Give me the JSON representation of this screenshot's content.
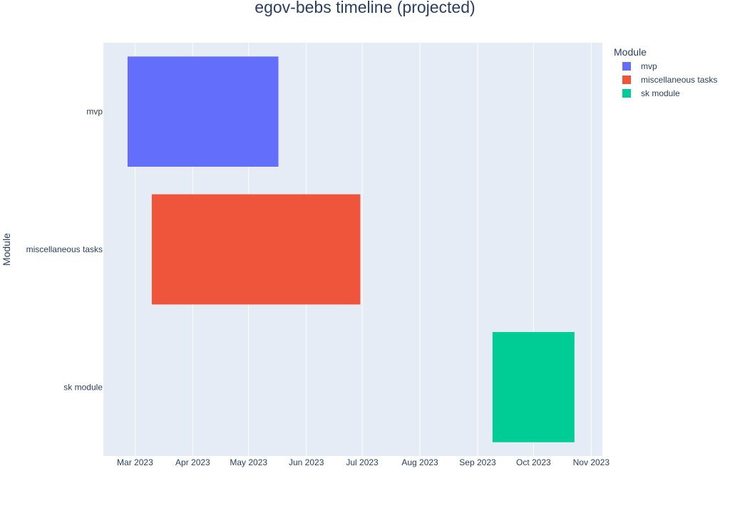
{
  "chart_data": {
    "type": "timeline",
    "title": "egov-bebs timeline (projected)",
    "xlabel": "",
    "ylabel": "Module",
    "x_ticks": [
      "2023-03-01",
      "2023-04-01",
      "2023-05-01",
      "2023-06-01",
      "2023-07-01",
      "2023-08-01",
      "2023-09-01",
      "2023-10-01",
      "2023-11-01"
    ],
    "x_tick_labels": [
      "Mar 2023",
      "Apr 2023",
      "May 2023",
      "Jun 2023",
      "Jul 2023",
      "Aug 2023",
      "Sep 2023",
      "Oct 2023",
      "Nov 2023"
    ],
    "xlim": [
      "2023-02-12",
      "2023-11-07"
    ],
    "categories": [
      "mvp",
      "miscellaneous tasks",
      "sk module"
    ],
    "legend_title": "Module",
    "legend_position": "right",
    "grid": true,
    "series": [
      {
        "name": "mvp",
        "color": "#636efa",
        "start": "2023-02-25",
        "end": "2023-05-17"
      },
      {
        "name": "miscellaneous tasks",
        "color": "#ef553b",
        "start": "2023-03-10",
        "end": "2023-06-30"
      },
      {
        "name": "sk module",
        "color": "#00cc96",
        "start": "2023-09-09",
        "end": "2023-10-23"
      }
    ]
  }
}
